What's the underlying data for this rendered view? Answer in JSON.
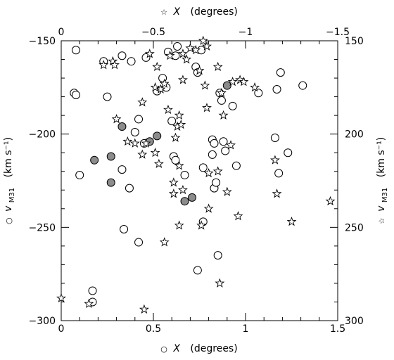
{
  "chart_data": {
    "type": "scatter",
    "bottom_axis": {
      "label_prefix": "○",
      "label_var": "X",
      "label_unit": "(degrees)",
      "xlim": [
        0,
        1.5
      ],
      "ticks": [
        0,
        0.5,
        1,
        1.5
      ],
      "tick_labels": [
        "0",
        "0.5",
        "1",
        "1.5"
      ]
    },
    "top_axis": {
      "label_prefix": "☆",
      "label_var": "X",
      "label_unit": "(degrees)",
      "xlim": [
        0,
        -1.5
      ],
      "ticks": [
        0,
        -0.5,
        -1,
        -1.5
      ],
      "tick_labels": [
        "0",
        "−0.5",
        "−1",
        "−1.5"
      ]
    },
    "left_axis": {
      "label_prefix": "○",
      "label_var": "v",
      "label_sub": "M31",
      "label_unit": "(km s⁻¹)",
      "ylim": [
        -300,
        -150
      ],
      "ticks": [
        -300,
        -250,
        -200,
        -150
      ],
      "tick_labels": [
        "−300",
        "−250",
        "−200",
        "−150"
      ]
    },
    "right_axis": {
      "label_prefix": "☆",
      "label_var": "v",
      "label_sub": "M31",
      "label_unit": "(km s⁻¹)",
      "ylim": [
        300,
        150
      ],
      "ticks": [
        300,
        250,
        200,
        150
      ],
      "tick_labels": [
        "300",
        "250",
        "200",
        "150"
      ]
    },
    "grid": false,
    "series": [
      {
        "marker": "open-circle",
        "axes": "bottom-left",
        "points": [
          [
            0.08,
            -155
          ],
          [
            0.07,
            -178
          ],
          [
            0.08,
            -179
          ],
          [
            0.1,
            -222
          ],
          [
            0.17,
            -284
          ],
          [
            0.17,
            -290
          ],
          [
            0.23,
            -161
          ],
          [
            0.25,
            -180
          ],
          [
            0.33,
            -158
          ],
          [
            0.33,
            -219
          ],
          [
            0.34,
            -251
          ],
          [
            0.38,
            -161
          ],
          [
            0.37,
            -229
          ],
          [
            0.4,
            -199
          ],
          [
            0.42,
            -192
          ],
          [
            0.42,
            -258
          ],
          [
            0.46,
            -159
          ],
          [
            0.45,
            -205
          ],
          [
            0.52,
            -177
          ],
          [
            0.55,
            -170
          ],
          [
            0.57,
            -175
          ],
          [
            0.58,
            -156
          ],
          [
            0.6,
            -193
          ],
          [
            0.61,
            -212
          ],
          [
            0.62,
            -214
          ],
          [
            0.62,
            -158
          ],
          [
            0.63,
            -153
          ],
          [
            0.67,
            -222
          ],
          [
            0.73,
            -164
          ],
          [
            0.74,
            -167
          ],
          [
            0.74,
            -273
          ],
          [
            0.76,
            -155
          ],
          [
            0.77,
            -218
          ],
          [
            0.77,
            -247
          ],
          [
            0.82,
            -203
          ],
          [
            0.83,
            -205
          ],
          [
            0.82,
            -211
          ],
          [
            0.83,
            -229
          ],
          [
            0.84,
            -226
          ],
          [
            0.85,
            -265
          ],
          [
            0.87,
            -182
          ],
          [
            0.86,
            -178
          ],
          [
            0.88,
            -204
          ],
          [
            0.89,
            -209
          ],
          [
            0.93,
            -185
          ],
          [
            0.95,
            -217
          ],
          [
            1.07,
            -178
          ],
          [
            1.16,
            -202
          ],
          [
            1.17,
            -176
          ],
          [
            1.18,
            -221
          ],
          [
            1.19,
            -167
          ],
          [
            1.23,
            -210
          ],
          [
            1.31,
            -174
          ]
        ]
      },
      {
        "marker": "filled-circle",
        "axes": "bottom-left",
        "points": [
          [
            0.18,
            -214
          ],
          [
            0.27,
            -212
          ],
          [
            0.27,
            -226
          ],
          [
            0.33,
            -196
          ],
          [
            0.48,
            -204
          ],
          [
            0.52,
            -201
          ],
          [
            0.67,
            -236
          ],
          [
            0.71,
            -234
          ],
          [
            0.9,
            -174
          ]
        ]
      },
      {
        "marker": "open-star",
        "axes": "top-right",
        "points": [
          [
            0.0,
            288
          ],
          [
            -0.15,
            291
          ],
          [
            -0.23,
            163
          ],
          [
            -0.28,
            161
          ],
          [
            -0.29,
            163
          ],
          [
            -0.3,
            192
          ],
          [
            -0.36,
            204
          ],
          [
            -0.4,
            205
          ],
          [
            -0.44,
            183
          ],
          [
            -0.44,
            211
          ],
          [
            -0.46,
            205
          ],
          [
            -0.48,
            157
          ],
          [
            -0.51,
            175
          ],
          [
            -0.51,
            210
          ],
          [
            -0.52,
            164
          ],
          [
            -0.53,
            216
          ],
          [
            -0.54,
            176
          ],
          [
            -0.56,
            173
          ],
          [
            -0.56,
            258
          ],
          [
            -0.58,
            187
          ],
          [
            -0.59,
            158
          ],
          [
            -0.61,
            226
          ],
          [
            -0.61,
            232
          ],
          [
            -0.62,
            202
          ],
          [
            -0.63,
            196
          ],
          [
            -0.64,
            190
          ],
          [
            -0.64,
            249
          ],
          [
            -0.64,
            217
          ],
          [
            -0.65,
            195
          ],
          [
            -0.66,
            171
          ],
          [
            -0.66,
            230
          ],
          [
            -0.66,
            157
          ],
          [
            -0.68,
            160
          ],
          [
            -0.7,
            154
          ],
          [
            -0.73,
            155
          ],
          [
            -0.75,
            166
          ],
          [
            -0.76,
            249
          ],
          [
            -0.77,
            150
          ],
          [
            -0.78,
            174
          ],
          [
            -0.79,
            153
          ],
          [
            -0.79,
            186
          ],
          [
            -0.8,
            221
          ],
          [
            -0.8,
            240
          ],
          [
            -0.85,
            164
          ],
          [
            -0.85,
            220
          ],
          [
            -0.86,
            280
          ],
          [
            -0.87,
            178
          ],
          [
            -0.88,
            190
          ],
          [
            -0.9,
            231
          ],
          [
            -0.92,
            206
          ],
          [
            -0.93,
            172
          ],
          [
            -0.96,
            244
          ],
          [
            -0.97,
            171
          ],
          [
            -0.99,
            172
          ],
          [
            -1.05,
            175
          ],
          [
            -1.16,
            214
          ],
          [
            -1.17,
            232
          ],
          [
            -1.25,
            247
          ],
          [
            -1.46,
            236
          ],
          [
            -0.45,
            294
          ]
        ]
      }
    ]
  }
}
